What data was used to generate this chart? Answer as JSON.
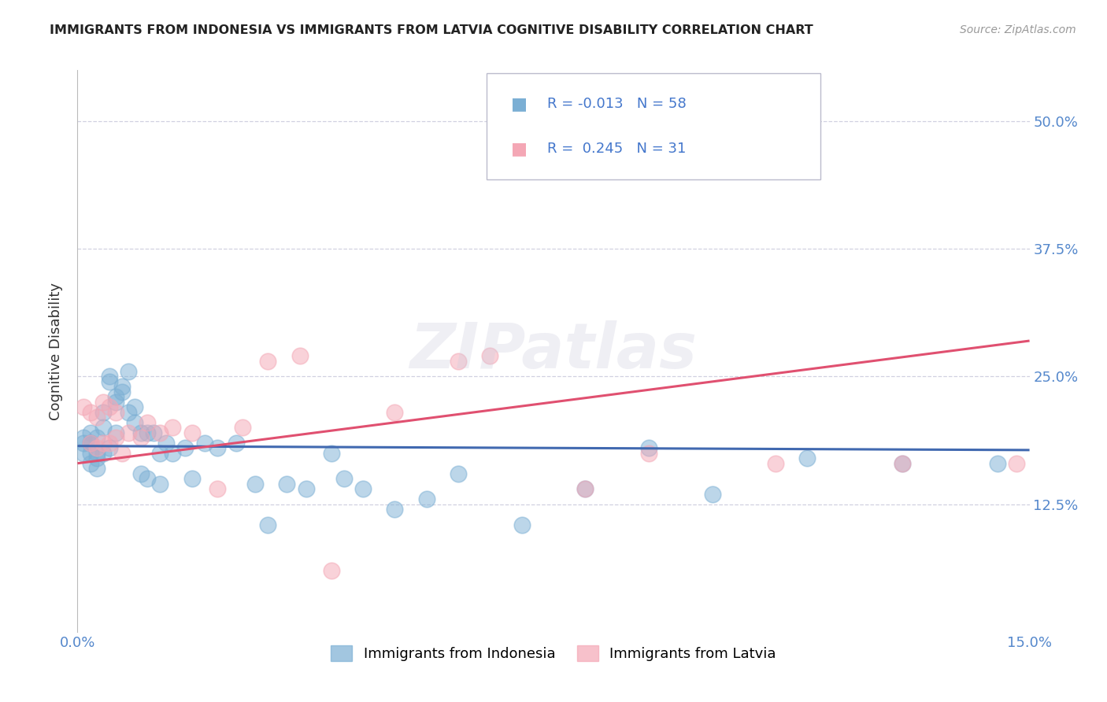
{
  "title": "IMMIGRANTS FROM INDONESIA VS IMMIGRANTS FROM LATVIA COGNITIVE DISABILITY CORRELATION CHART",
  "source": "Source: ZipAtlas.com",
  "ylabel": "Cognitive Disability",
  "xlim": [
    0.0,
    0.15
  ],
  "ylim": [
    0.0,
    0.55
  ],
  "yticks": [
    0.125,
    0.25,
    0.375,
    0.5
  ],
  "ytick_labels": [
    "12.5%",
    "25.0%",
    "37.5%",
    "50.0%"
  ],
  "xticks": [
    0.0,
    0.025,
    0.05,
    0.075,
    0.1,
    0.125,
    0.15
  ],
  "xtick_labels": [
    "0.0%",
    "",
    "",
    "",
    "",
    "",
    "15.0%"
  ],
  "watermark": "ZIPatlas",
  "series1_name": "Immigrants from Indonesia",
  "series1_color": "#7BAFD4",
  "series1_line_color": "#4169B0",
  "series1_R": -0.013,
  "series1_N": 58,
  "series2_name": "Immigrants from Latvia",
  "series2_color": "#F4A7B5",
  "series2_line_color": "#E05070",
  "series2_R": 0.245,
  "series2_N": 31,
  "legend_text_color": "#4477CC",
  "indonesia_x": [
    0.001,
    0.001,
    0.001,
    0.002,
    0.002,
    0.002,
    0.002,
    0.002,
    0.003,
    0.003,
    0.003,
    0.003,
    0.004,
    0.004,
    0.004,
    0.005,
    0.005,
    0.005,
    0.006,
    0.006,
    0.006,
    0.007,
    0.007,
    0.008,
    0.008,
    0.009,
    0.009,
    0.01,
    0.01,
    0.011,
    0.011,
    0.012,
    0.013,
    0.013,
    0.014,
    0.015,
    0.017,
    0.018,
    0.02,
    0.022,
    0.025,
    0.028,
    0.03,
    0.033,
    0.036,
    0.04,
    0.042,
    0.045,
    0.05,
    0.055,
    0.06,
    0.07,
    0.08,
    0.09,
    0.1,
    0.115,
    0.13,
    0.145
  ],
  "indonesia_y": [
    0.185,
    0.19,
    0.175,
    0.185,
    0.175,
    0.165,
    0.195,
    0.185,
    0.19,
    0.175,
    0.17,
    0.16,
    0.2,
    0.215,
    0.175,
    0.245,
    0.25,
    0.18,
    0.23,
    0.225,
    0.195,
    0.235,
    0.24,
    0.255,
    0.215,
    0.22,
    0.205,
    0.195,
    0.155,
    0.195,
    0.15,
    0.195,
    0.175,
    0.145,
    0.185,
    0.175,
    0.18,
    0.15,
    0.185,
    0.18,
    0.185,
    0.145,
    0.105,
    0.145,
    0.14,
    0.175,
    0.15,
    0.14,
    0.12,
    0.13,
    0.155,
    0.105,
    0.14,
    0.18,
    0.135,
    0.17,
    0.165,
    0.165
  ],
  "latvia_x": [
    0.001,
    0.002,
    0.002,
    0.003,
    0.003,
    0.004,
    0.004,
    0.005,
    0.005,
    0.006,
    0.006,
    0.007,
    0.008,
    0.01,
    0.011,
    0.013,
    0.015,
    0.018,
    0.022,
    0.026,
    0.03,
    0.035,
    0.04,
    0.05,
    0.06,
    0.065,
    0.08,
    0.09,
    0.11,
    0.13,
    0.148
  ],
  "latvia_y": [
    0.22,
    0.215,
    0.185,
    0.21,
    0.18,
    0.225,
    0.185,
    0.22,
    0.185,
    0.215,
    0.19,
    0.175,
    0.195,
    0.19,
    0.205,
    0.195,
    0.2,
    0.195,
    0.14,
    0.2,
    0.265,
    0.27,
    0.06,
    0.215,
    0.265,
    0.27,
    0.14,
    0.175,
    0.165,
    0.165,
    0.165
  ],
  "indo_line_x": [
    0.0,
    0.15
  ],
  "indo_line_y": [
    0.182,
    0.178
  ],
  "latv_line_x": [
    0.0,
    0.15
  ],
  "latv_line_y": [
    0.165,
    0.285
  ]
}
